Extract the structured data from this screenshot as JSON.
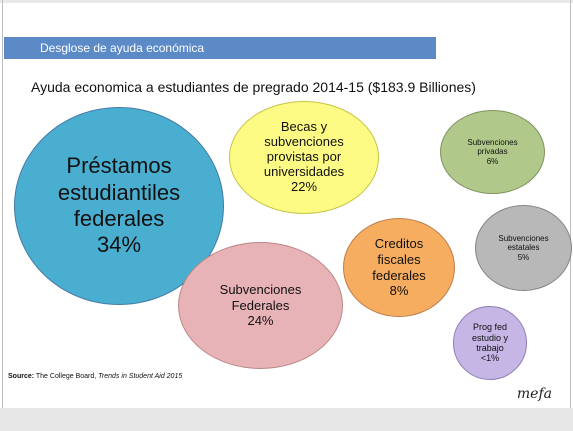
{
  "header": {
    "title": "Desglose de ayuda económica"
  },
  "subtitle": {
    "text": "Ayuda economica a estudiantes de pregrado 2014-15 ($183.9 Billiones)"
  },
  "bubbles": [
    {
      "label": "Préstamos\nestudiantiles\nfederales\n34%",
      "color": "#4aaed0"
    },
    {
      "label": "Becas y\nsubvenciones\nprovistas por\nuniversidades\n22%",
      "color": "#fdfb84"
    },
    {
      "label": "Subvenciones\nFederales\n24%",
      "color": "#e8b3b6"
    },
    {
      "label": "Creditos\nfiscales\nfederales\n8%",
      "color": "#f6ad60"
    },
    {
      "label": "Subvenciones\nprivadas\n6%",
      "color": "#b0c98a"
    },
    {
      "label": "Subvenciones\nestatales\n5%",
      "color": "#b8b8b8"
    },
    {
      "label": "Prog fed\nestudio y\ntrabajo\n<1%",
      "color": "#c5b6e6"
    }
  ],
  "source": {
    "label": "Source:",
    "publisher": "The College Board,",
    "publication": "Trends in Student Aid 2015"
  },
  "logo": {
    "text": "mefa"
  },
  "colors": {
    "header_bar": "#5b8ac7",
    "footer": "#e7e7e7"
  }
}
